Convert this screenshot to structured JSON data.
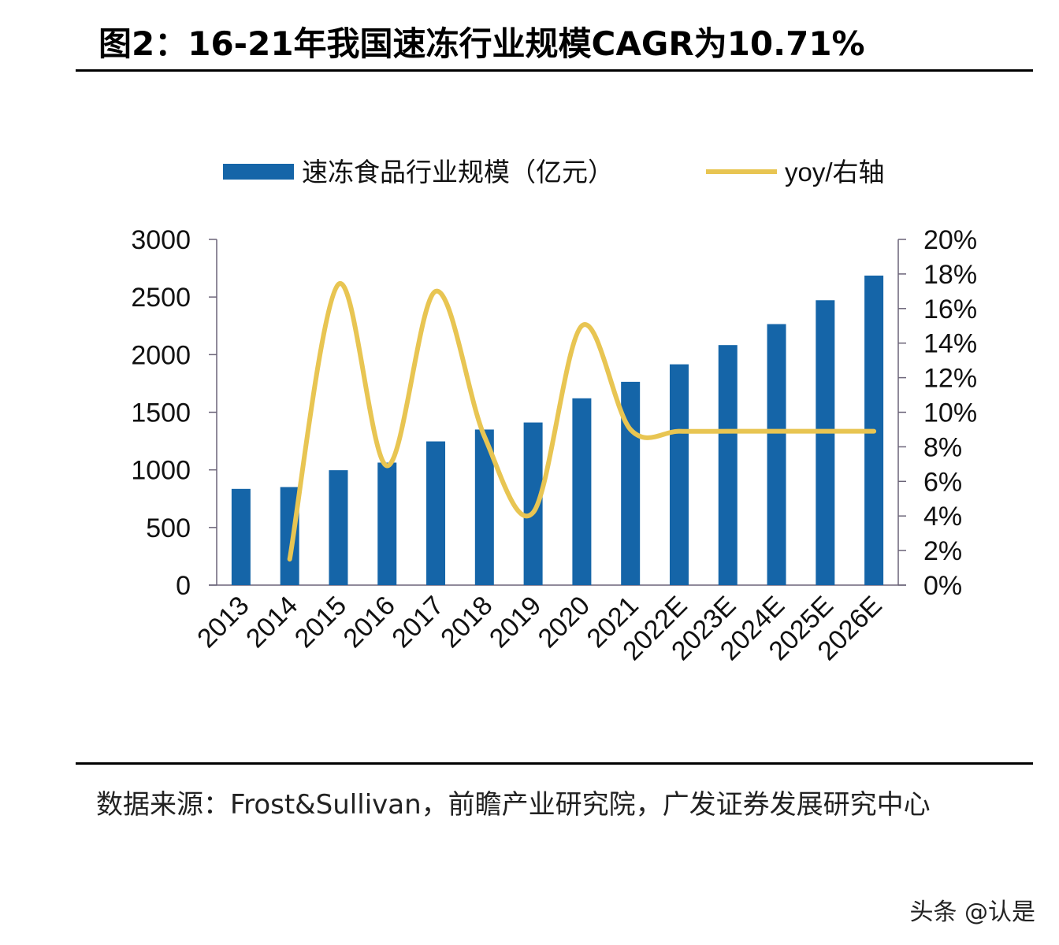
{
  "title": "图2：16-21年我国速冻行业规模CAGR为10.71%",
  "source": "数据来源：Frost&Sullivan，前瞻产业研究院，广发证券发展研究中心",
  "watermark": "头条 @认是",
  "chart_data": {
    "type": "bar+line",
    "categories": [
      "2013",
      "2014",
      "2015",
      "2016",
      "2017",
      "2018",
      "2019",
      "2020",
      "2021",
      "2022E",
      "2023E",
      "2024E",
      "2025E",
      "2026E"
    ],
    "series": [
      {
        "name": "速冻食品行业规模（亿元）",
        "type": "bar",
        "axis": "left",
        "color": "#1565a8",
        "values": [
          835,
          851,
          997,
          1063,
          1247,
          1350,
          1411,
          1621,
          1764,
          1916,
          2083,
          2265,
          2472,
          2686
        ]
      },
      {
        "name": "yoy/右轴",
        "type": "line",
        "axis": "right",
        "color": "#e8c552",
        "smooth": true,
        "values": [
          null,
          1.5,
          17.4,
          6.9,
          17.0,
          8.6,
          4.2,
          15.0,
          9.0,
          8.9,
          8.9,
          8.9,
          8.9,
          8.9
        ]
      }
    ],
    "left_axis": {
      "ylim": [
        0,
        3000
      ],
      "ticks": [
        "0",
        "500",
        "1000",
        "1500",
        "2000",
        "2500",
        "3000"
      ]
    },
    "right_axis": {
      "ylim": [
        0,
        20
      ],
      "ticks": [
        "0%",
        "2%",
        "4%",
        "6%",
        "8%",
        "10%",
        "12%",
        "14%",
        "16%",
        "18%",
        "20%"
      ]
    },
    "legend": "top",
    "grid": false
  }
}
